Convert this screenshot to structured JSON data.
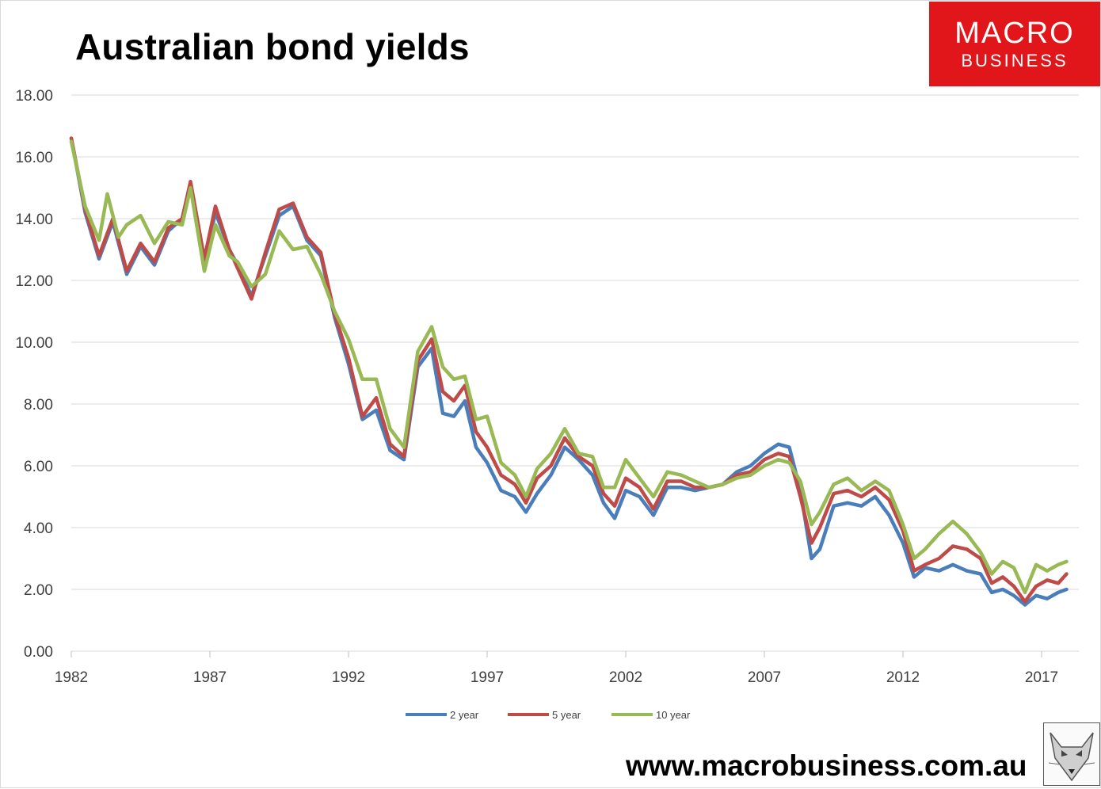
{
  "title": "Australian bond yields",
  "logo": {
    "line1": "MACRO",
    "line2": "BUSINESS",
    "color": "#e0161b"
  },
  "website": "www.macrobusiness.com.au",
  "colors": {
    "two_year": "#4a7ebb",
    "five_year": "#be4b48",
    "ten_year": "#98b954",
    "grid": "#d9d9d9",
    "text": "#404040"
  },
  "chart_data": {
    "type": "line",
    "title": "Australian bond yields",
    "xlabel": "",
    "ylabel": "",
    "xlim": [
      1982,
      2018
    ],
    "ylim": [
      0,
      18
    ],
    "y_ticks": [
      "0.00",
      "2.00",
      "4.00",
      "6.00",
      "8.00",
      "10.00",
      "12.00",
      "14.00",
      "16.00",
      "18.00"
    ],
    "x_ticks": [
      "1982",
      "1987",
      "1992",
      "1997",
      "2002",
      "2007",
      "2012",
      "2017"
    ],
    "grid": true,
    "legend_position": "bottom",
    "series": [
      {
        "name": "2 year",
        "color": "#4a7ebb",
        "points": [
          [
            1982.0,
            16.6
          ],
          [
            1982.5,
            14.2
          ],
          [
            1983.0,
            12.7
          ],
          [
            1983.5,
            13.9
          ],
          [
            1984.0,
            12.2
          ],
          [
            1984.5,
            13.1
          ],
          [
            1985.0,
            12.5
          ],
          [
            1985.5,
            13.6
          ],
          [
            1986.0,
            14.0
          ],
          [
            1986.3,
            15.1
          ],
          [
            1986.8,
            12.6
          ],
          [
            1987.2,
            14.2
          ],
          [
            1987.7,
            13.0
          ],
          [
            1988.0,
            12.5
          ],
          [
            1988.5,
            11.5
          ],
          [
            1989.0,
            12.8
          ],
          [
            1989.5,
            14.1
          ],
          [
            1990.0,
            14.4
          ],
          [
            1990.5,
            13.3
          ],
          [
            1991.0,
            12.8
          ],
          [
            1991.5,
            10.8
          ],
          [
            1992.0,
            9.3
          ],
          [
            1992.5,
            7.5
          ],
          [
            1993.0,
            7.8
          ],
          [
            1993.5,
            6.5
          ],
          [
            1994.0,
            6.2
          ],
          [
            1994.5,
            9.2
          ],
          [
            1995.0,
            9.8
          ],
          [
            1995.4,
            7.7
          ],
          [
            1995.8,
            7.6
          ],
          [
            1996.2,
            8.1
          ],
          [
            1996.6,
            6.6
          ],
          [
            1997.0,
            6.1
          ],
          [
            1997.5,
            5.2
          ],
          [
            1998.0,
            5.0
          ],
          [
            1998.4,
            4.5
          ],
          [
            1998.8,
            5.1
          ],
          [
            1999.3,
            5.7
          ],
          [
            1999.8,
            6.6
          ],
          [
            2000.3,
            6.2
          ],
          [
            2000.8,
            5.7
          ],
          [
            2001.2,
            4.8
          ],
          [
            2001.6,
            4.3
          ],
          [
            2002.0,
            5.2
          ],
          [
            2002.5,
            5.0
          ],
          [
            2003.0,
            4.4
          ],
          [
            2003.5,
            5.3
          ],
          [
            2004.0,
            5.3
          ],
          [
            2004.5,
            5.2
          ],
          [
            2005.0,
            5.3
          ],
          [
            2005.5,
            5.4
          ],
          [
            2006.0,
            5.8
          ],
          [
            2006.5,
            6.0
          ],
          [
            2007.0,
            6.4
          ],
          [
            2007.5,
            6.7
          ],
          [
            2007.9,
            6.6
          ],
          [
            2008.3,
            5.2
          ],
          [
            2008.7,
            3.0
          ],
          [
            2009.0,
            3.3
          ],
          [
            2009.5,
            4.7
          ],
          [
            2010.0,
            4.8
          ],
          [
            2010.5,
            4.7
          ],
          [
            2011.0,
            5.0
          ],
          [
            2011.5,
            4.4
          ],
          [
            2012.0,
            3.5
          ],
          [
            2012.4,
            2.4
          ],
          [
            2012.8,
            2.7
          ],
          [
            2013.3,
            2.6
          ],
          [
            2013.8,
            2.8
          ],
          [
            2014.3,
            2.6
          ],
          [
            2014.8,
            2.5
          ],
          [
            2015.2,
            1.9
          ],
          [
            2015.6,
            2.0
          ],
          [
            2016.0,
            1.8
          ],
          [
            2016.4,
            1.5
          ],
          [
            2016.8,
            1.8
          ],
          [
            2017.2,
            1.7
          ],
          [
            2017.6,
            1.9
          ],
          [
            2017.9,
            2.0
          ]
        ]
      },
      {
        "name": "5 year",
        "color": "#be4b48",
        "points": [
          [
            1982.0,
            16.6
          ],
          [
            1982.5,
            14.3
          ],
          [
            1983.0,
            12.8
          ],
          [
            1983.5,
            14.0
          ],
          [
            1984.0,
            12.3
          ],
          [
            1984.5,
            13.2
          ],
          [
            1985.0,
            12.6
          ],
          [
            1985.5,
            13.7
          ],
          [
            1986.0,
            14.0
          ],
          [
            1986.3,
            15.2
          ],
          [
            1986.8,
            12.7
          ],
          [
            1987.2,
            14.4
          ],
          [
            1987.7,
            13.0
          ],
          [
            1988.0,
            12.4
          ],
          [
            1988.5,
            11.4
          ],
          [
            1989.0,
            12.9
          ],
          [
            1989.5,
            14.3
          ],
          [
            1990.0,
            14.5
          ],
          [
            1990.5,
            13.4
          ],
          [
            1991.0,
            12.9
          ],
          [
            1991.5,
            10.9
          ],
          [
            1992.0,
            9.5
          ],
          [
            1992.5,
            7.6
          ],
          [
            1993.0,
            8.2
          ],
          [
            1993.5,
            6.7
          ],
          [
            1994.0,
            6.3
          ],
          [
            1994.5,
            9.4
          ],
          [
            1995.0,
            10.1
          ],
          [
            1995.4,
            8.4
          ],
          [
            1995.8,
            8.1
          ],
          [
            1996.2,
            8.6
          ],
          [
            1996.6,
            7.1
          ],
          [
            1997.0,
            6.6
          ],
          [
            1997.5,
            5.7
          ],
          [
            1998.0,
            5.4
          ],
          [
            1998.4,
            4.8
          ],
          [
            1998.8,
            5.6
          ],
          [
            1999.3,
            6.0
          ],
          [
            1999.8,
            6.9
          ],
          [
            2000.3,
            6.3
          ],
          [
            2000.8,
            6.0
          ],
          [
            2001.2,
            5.1
          ],
          [
            2001.6,
            4.7
          ],
          [
            2002.0,
            5.6
          ],
          [
            2002.5,
            5.3
          ],
          [
            2003.0,
            4.6
          ],
          [
            2003.5,
            5.5
          ],
          [
            2004.0,
            5.5
          ],
          [
            2004.5,
            5.3
          ],
          [
            2005.0,
            5.3
          ],
          [
            2005.5,
            5.4
          ],
          [
            2006.0,
            5.7
          ],
          [
            2006.5,
            5.8
          ],
          [
            2007.0,
            6.2
          ],
          [
            2007.5,
            6.4
          ],
          [
            2007.9,
            6.3
          ],
          [
            2008.3,
            5.0
          ],
          [
            2008.7,
            3.5
          ],
          [
            2009.0,
            4.0
          ],
          [
            2009.5,
            5.1
          ],
          [
            2010.0,
            5.2
          ],
          [
            2010.5,
            5.0
          ],
          [
            2011.0,
            5.3
          ],
          [
            2011.5,
            4.9
          ],
          [
            2012.0,
            3.9
          ],
          [
            2012.4,
            2.6
          ],
          [
            2012.8,
            2.8
          ],
          [
            2013.3,
            3.0
          ],
          [
            2013.8,
            3.4
          ],
          [
            2014.3,
            3.3
          ],
          [
            2014.8,
            3.0
          ],
          [
            2015.2,
            2.2
          ],
          [
            2015.6,
            2.4
          ],
          [
            2016.0,
            2.1
          ],
          [
            2016.4,
            1.6
          ],
          [
            2016.8,
            2.1
          ],
          [
            2017.2,
            2.3
          ],
          [
            2017.6,
            2.2
          ],
          [
            2017.9,
            2.5
          ]
        ]
      },
      {
        "name": "10 year",
        "color": "#98b954",
        "points": [
          [
            1982.0,
            16.5
          ],
          [
            1982.5,
            14.4
          ],
          [
            1983.0,
            13.3
          ],
          [
            1983.3,
            14.8
          ],
          [
            1983.7,
            13.4
          ],
          [
            1984.0,
            13.8
          ],
          [
            1984.5,
            14.1
          ],
          [
            1985.0,
            13.2
          ],
          [
            1985.5,
            13.9
          ],
          [
            1986.0,
            13.8
          ],
          [
            1986.3,
            15.0
          ],
          [
            1986.8,
            12.3
          ],
          [
            1987.2,
            13.8
          ],
          [
            1987.7,
            12.8
          ],
          [
            1988.0,
            12.6
          ],
          [
            1988.5,
            11.8
          ],
          [
            1989.0,
            12.2
          ],
          [
            1989.5,
            13.6
          ],
          [
            1990.0,
            13.0
          ],
          [
            1990.5,
            13.1
          ],
          [
            1991.0,
            12.2
          ],
          [
            1991.5,
            11.0
          ],
          [
            1992.0,
            10.1
          ],
          [
            1992.5,
            8.8
          ],
          [
            1993.0,
            8.8
          ],
          [
            1993.5,
            7.2
          ],
          [
            1994.0,
            6.6
          ],
          [
            1994.5,
            9.7
          ],
          [
            1995.0,
            10.5
          ],
          [
            1995.4,
            9.2
          ],
          [
            1995.8,
            8.8
          ],
          [
            1996.2,
            8.9
          ],
          [
            1996.6,
            7.5
          ],
          [
            1997.0,
            7.6
          ],
          [
            1997.5,
            6.1
          ],
          [
            1998.0,
            5.7
          ],
          [
            1998.4,
            5.0
          ],
          [
            1998.8,
            5.9
          ],
          [
            1999.3,
            6.4
          ],
          [
            1999.8,
            7.2
          ],
          [
            2000.3,
            6.4
          ],
          [
            2000.8,
            6.3
          ],
          [
            2001.2,
            5.3
          ],
          [
            2001.6,
            5.3
          ],
          [
            2002.0,
            6.2
          ],
          [
            2002.5,
            5.6
          ],
          [
            2003.0,
            5.0
          ],
          [
            2003.5,
            5.8
          ],
          [
            2004.0,
            5.7
          ],
          [
            2004.5,
            5.5
          ],
          [
            2005.0,
            5.3
          ],
          [
            2005.5,
            5.4
          ],
          [
            2006.0,
            5.6
          ],
          [
            2006.5,
            5.7
          ],
          [
            2007.0,
            6.0
          ],
          [
            2007.5,
            6.2
          ],
          [
            2007.9,
            6.1
          ],
          [
            2008.3,
            5.5
          ],
          [
            2008.7,
            4.1
          ],
          [
            2009.0,
            4.5
          ],
          [
            2009.5,
            5.4
          ],
          [
            2010.0,
            5.6
          ],
          [
            2010.5,
            5.2
          ],
          [
            2011.0,
            5.5
          ],
          [
            2011.5,
            5.2
          ],
          [
            2012.0,
            4.1
          ],
          [
            2012.4,
            3.0
          ],
          [
            2012.8,
            3.3
          ],
          [
            2013.3,
            3.8
          ],
          [
            2013.8,
            4.2
          ],
          [
            2014.3,
            3.8
          ],
          [
            2014.8,
            3.2
          ],
          [
            2015.2,
            2.5
          ],
          [
            2015.6,
            2.9
          ],
          [
            2016.0,
            2.7
          ],
          [
            2016.4,
            1.9
          ],
          [
            2016.8,
            2.8
          ],
          [
            2017.2,
            2.6
          ],
          [
            2017.6,
            2.8
          ],
          [
            2017.9,
            2.9
          ]
        ]
      }
    ]
  }
}
